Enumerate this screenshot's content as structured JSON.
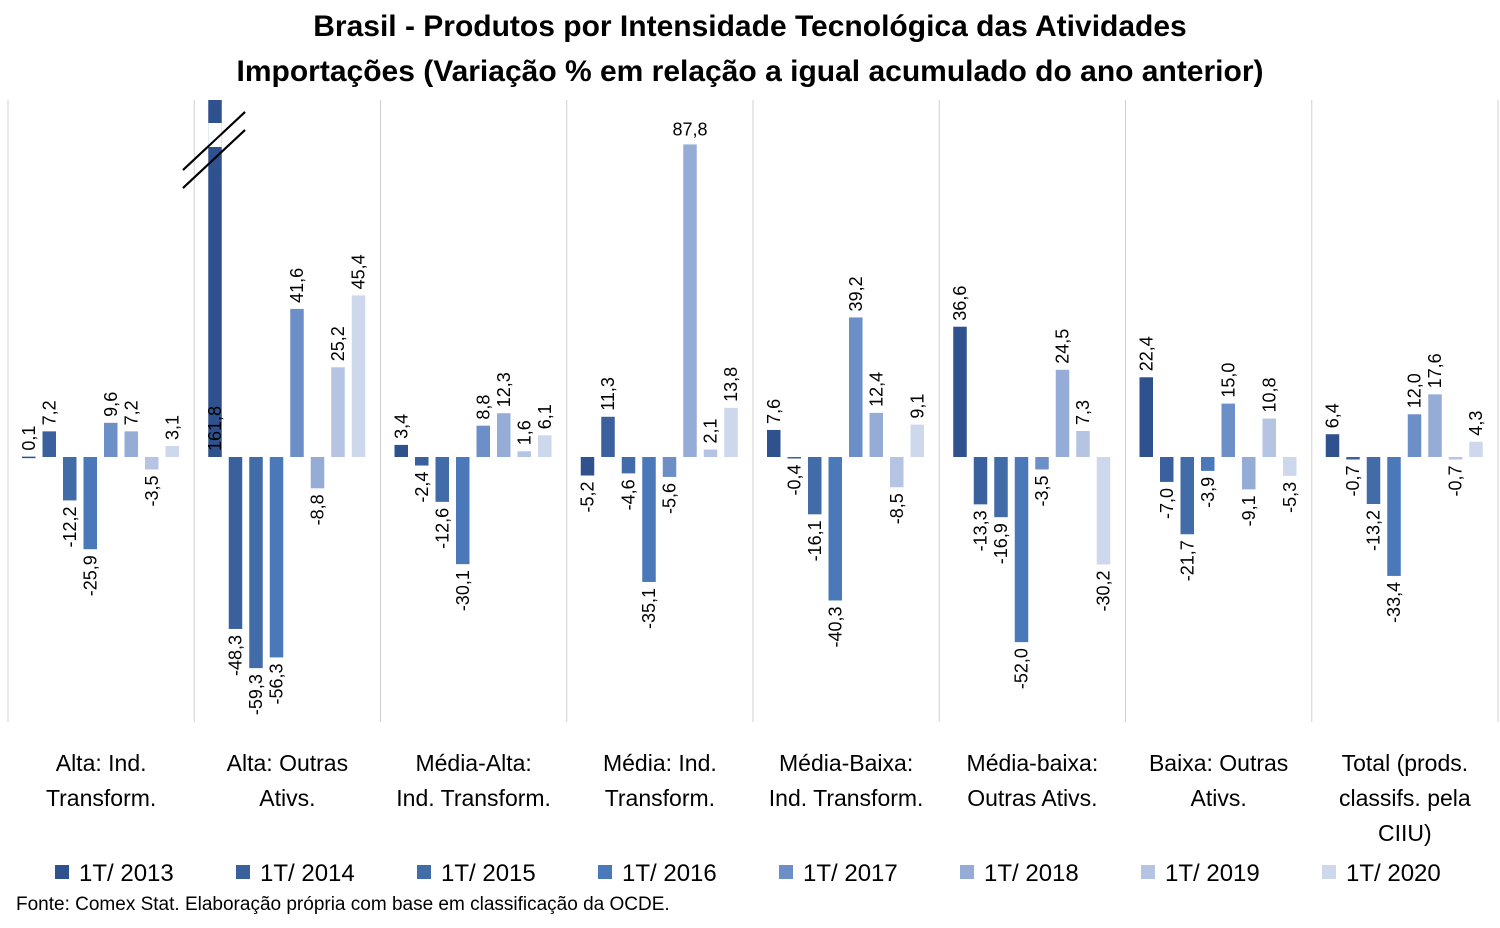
{
  "chart_data": {
    "type": "bar",
    "title": "Brasil - Produtos por Intensidade Tecnológica das Atividades",
    "subtitle": "Importações (Variação % em relação a igual acumulado do ano anterior)",
    "source": "Fonte: Comex Stat.  Elaboração própria com base em classificação da OCDE.",
    "legend_position": "bottom",
    "categories": [
      [
        "Alta: Ind.",
        "Transform."
      ],
      [
        "Alta: Outras",
        "Ativs."
      ],
      [
        "Média-Alta:",
        "Ind. Transform."
      ],
      [
        "Média: Ind.",
        "Transform."
      ],
      [
        "Média-Baixa:",
        "Ind. Transform."
      ],
      [
        "Média-baixa:",
        "Outras Ativs."
      ],
      [
        "Baixa: Outras",
        "Ativs."
      ],
      [
        "Total (prods.",
        "classifs. pela",
        "CIIU)"
      ]
    ],
    "series": [
      {
        "name": "1T/ 2013",
        "color": "#2f528f",
        "values": [
          0.1,
          161.8,
          3.4,
          -5.2,
          7.6,
          36.6,
          22.4,
          6.4
        ],
        "labels": [
          "0,1",
          "161,8",
          "3,4",
          "-5,2",
          "7,6",
          "36,6",
          "22,4",
          "6,4"
        ]
      },
      {
        "name": "1T/ 2014",
        "color": "#3a609e",
        "values": [
          7.2,
          -48.3,
          -2.4,
          11.3,
          -0.4,
          -13.3,
          -7.0,
          -0.7
        ],
        "labels": [
          "7,2",
          "-48,3",
          "-2,4",
          "11,3",
          "-0,4",
          "-13,3",
          "-7,0",
          "-0,7"
        ]
      },
      {
        "name": "1T/ 2015",
        "color": "#426ca8",
        "values": [
          -12.2,
          -59.3,
          -12.6,
          -4.6,
          -16.1,
          -16.9,
          -21.7,
          -13.2
        ],
        "labels": [
          "-12,2",
          "-59,3",
          "-12,6",
          "-4,6",
          "-16,1",
          "-16,9",
          "-21,7",
          "-13,2"
        ]
      },
      {
        "name": "1T/ 2016",
        "color": "#4a78b8",
        "values": [
          -25.9,
          -56.3,
          -30.1,
          -35.1,
          -40.3,
          -52.0,
          -3.9,
          -33.4
        ],
        "labels": [
          "-25,9",
          "-56,3",
          "-30,1",
          "-35,1",
          "-40,3",
          "-52,0",
          "-3,9",
          "-33,4"
        ]
      },
      {
        "name": "1T/ 2017",
        "color": "#6d8fc7",
        "values": [
          9.6,
          41.6,
          8.8,
          -5.6,
          39.2,
          -3.5,
          15.0,
          12.0
        ],
        "labels": [
          "9,6",
          "41,6",
          "8,8",
          "-5,6",
          "39,2",
          "-3,5",
          "15,0",
          "12,0"
        ]
      },
      {
        "name": "1T/ 2018",
        "color": "#95acd6",
        "values": [
          7.2,
          -8.8,
          12.3,
          87.8,
          12.4,
          24.5,
          -9.1,
          17.6
        ],
        "labels": [
          "7,2",
          "-8,8",
          "12,3",
          "87,8",
          "12,4",
          "24,5",
          "-9,1",
          "17,6"
        ]
      },
      {
        "name": "1T/ 2019",
        "color": "#b4c4e2",
        "values": [
          -3.5,
          25.2,
          1.6,
          2.1,
          -8.5,
          7.3,
          10.8,
          -0.7
        ],
        "labels": [
          "-3,5",
          "25,2",
          "1,6",
          "2,1",
          "-8,5",
          "7,3",
          "10,8",
          "-0,7"
        ]
      },
      {
        "name": "1T/ 2020",
        "color": "#cdd8ec",
        "values": [
          3.1,
          45.4,
          6.1,
          13.8,
          9.1,
          -30.2,
          -5.3,
          4.3
        ],
        "labels": [
          "3,1",
          "45,4",
          "6,1",
          "13,8",
          "9,1",
          "-30,2",
          "-5,3",
          "4,3"
        ]
      }
    ],
    "axis_break": {
      "series": 0,
      "category": 1
    },
    "ylim": [
      -75,
      100
    ],
    "grid": false
  }
}
